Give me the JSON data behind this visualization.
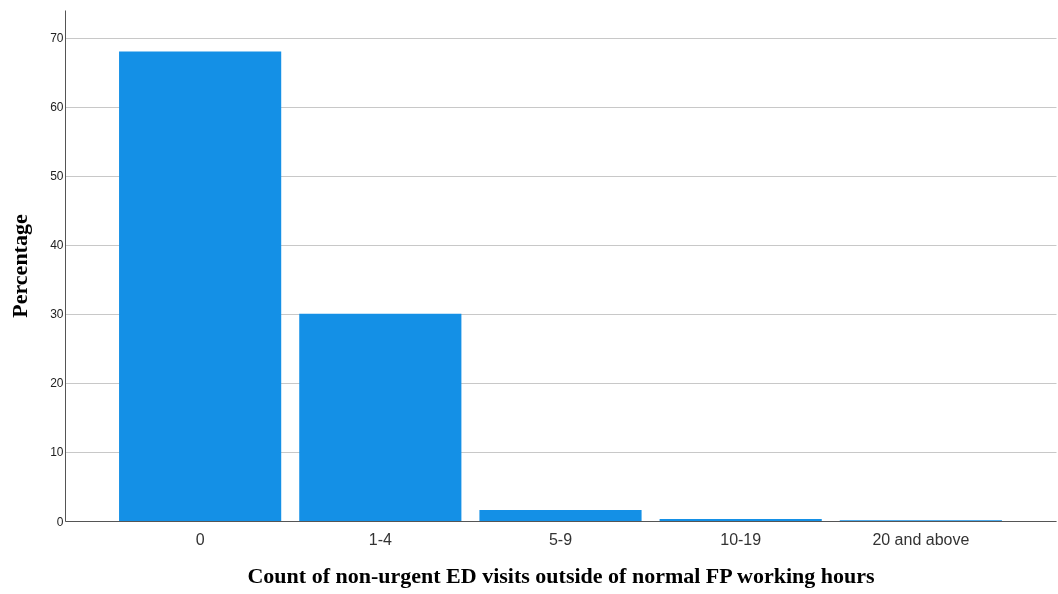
{
  "chart_data": {
    "type": "bar",
    "xlabel": "Count of non-urgent ED visits outside of normal FP working hours",
    "ylabel": "Percentage",
    "categories": [
      "0",
      "1-4",
      "5-9",
      "10-19",
      "20 and above"
    ],
    "values": [
      68,
      30,
      1.6,
      0.3,
      0.1
    ],
    "color": "#1490e6",
    "ylim": [
      0,
      74
    ],
    "yticks": [
      0,
      10,
      20,
      30,
      40,
      50,
      60,
      70
    ],
    "grid": "y"
  }
}
